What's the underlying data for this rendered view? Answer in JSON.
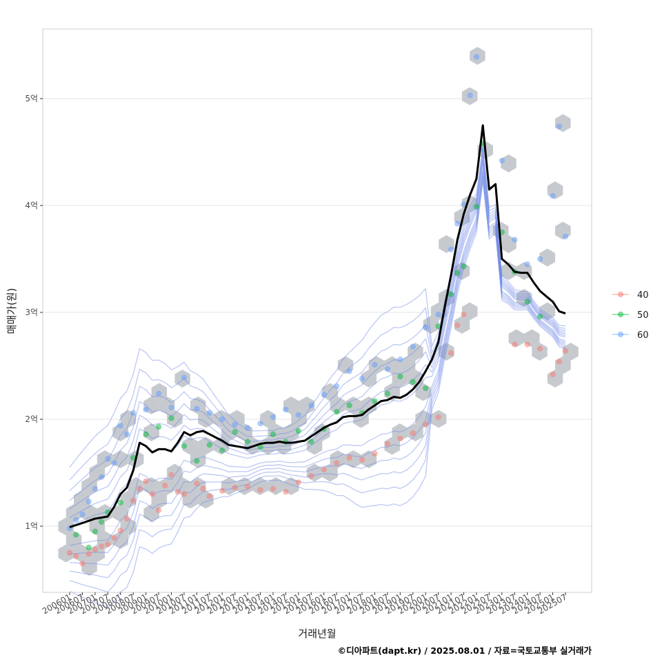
{
  "chart_data": {
    "type": "line",
    "title": "",
    "xlabel": "거래년월",
    "ylabel": "매매가(원)",
    "caption": "©디아파트(dapt.kr) / 2025.08.01 / 자료=국토교통부 실거래가",
    "x_ticks": [
      "200601",
      "200607",
      "200701",
      "200707",
      "200801",
      "200807",
      "200901",
      "200907",
      "201001",
      "201007",
      "201101",
      "201107",
      "201201",
      "201207",
      "201301",
      "201307",
      "201401",
      "201407",
      "201501",
      "201507",
      "201601",
      "201607",
      "201701",
      "201707",
      "201801",
      "201807",
      "201901",
      "201907",
      "202001",
      "202007",
      "202101",
      "202107",
      "202201",
      "202207",
      "202301",
      "202307",
      "202401",
      "202407",
      "202501",
      "202507"
    ],
    "y_ticks": [
      {
        "value": 10000,
        "label": "1억"
      },
      {
        "value": 20000,
        "label": "2억"
      },
      {
        "value": 30000,
        "label": "3억"
      },
      {
        "value": 40000,
        "label": "4억"
      },
      {
        "value": 50000,
        "label": "5억"
      }
    ],
    "y_unit": "만원",
    "ylim": [
      4500,
      57000
    ],
    "grid": true,
    "legend": {
      "placement": "right",
      "entries": [
        {
          "label": "40",
          "color": "#F8766D"
        },
        {
          "label": "50",
          "color": "#00BA38"
        },
        {
          "label": "60",
          "color": "#619CFF"
        }
      ]
    },
    "series": [
      {
        "style": "median-line",
        "color": "#000000",
        "points": [
          [
            "2006-01",
            9900
          ],
          [
            "2006-04",
            10100
          ],
          [
            "2006-07",
            10300
          ],
          [
            "2006-10",
            10500
          ],
          [
            "2007-01",
            10700
          ],
          [
            "2007-04",
            10800
          ],
          [
            "2007-07",
            10900
          ],
          [
            "2007-10",
            11800
          ],
          [
            "2008-01",
            13000
          ],
          [
            "2008-04",
            13600
          ],
          [
            "2008-07",
            15200
          ],
          [
            "2008-10",
            17800
          ],
          [
            "2009-01",
            17500
          ],
          [
            "2009-04",
            16900
          ],
          [
            "2009-07",
            17200
          ],
          [
            "2009-10",
            17200
          ],
          [
            "2010-01",
            17000
          ],
          [
            "2010-04",
            17800
          ],
          [
            "2010-07",
            18800
          ],
          [
            "2010-10",
            18500
          ],
          [
            "2011-01",
            18800
          ],
          [
            "2011-04",
            18900
          ],
          [
            "2011-07",
            18600
          ],
          [
            "2011-10",
            18300
          ],
          [
            "2012-01",
            18000
          ],
          [
            "2012-04",
            17600
          ],
          [
            "2012-07",
            17500
          ],
          [
            "2012-10",
            17400
          ],
          [
            "2013-01",
            17300
          ],
          [
            "2013-04",
            17500
          ],
          [
            "2013-07",
            17700
          ],
          [
            "2013-10",
            17800
          ],
          [
            "2014-01",
            17800
          ],
          [
            "2014-04",
            17900
          ],
          [
            "2014-07",
            17800
          ],
          [
            "2014-10",
            17800
          ],
          [
            "2015-01",
            17900
          ],
          [
            "2015-04",
            18000
          ],
          [
            "2015-07",
            18400
          ],
          [
            "2015-10",
            18800
          ],
          [
            "2016-01",
            19200
          ],
          [
            "2016-04",
            19500
          ],
          [
            "2016-07",
            19700
          ],
          [
            "2016-10",
            20200
          ],
          [
            "2017-01",
            20300
          ],
          [
            "2017-04",
            20300
          ],
          [
            "2017-07",
            20400
          ],
          [
            "2017-10",
            20900
          ],
          [
            "2018-01",
            21300
          ],
          [
            "2018-04",
            21700
          ],
          [
            "2018-07",
            21800
          ],
          [
            "2018-10",
            22100
          ],
          [
            "2019-01",
            22000
          ],
          [
            "2019-04",
            22300
          ],
          [
            "2019-07",
            22800
          ],
          [
            "2019-10",
            23500
          ],
          [
            "2020-01",
            24500
          ],
          [
            "2020-04",
            25600
          ],
          [
            "2020-07",
            27200
          ],
          [
            "2020-10",
            30500
          ],
          [
            "2021-01",
            33500
          ],
          [
            "2021-04",
            36800
          ],
          [
            "2021-07",
            39200
          ],
          [
            "2021-10",
            41000
          ],
          [
            "2022-01",
            42500
          ],
          [
            "2022-04",
            47500
          ],
          [
            "2022-07",
            41500
          ],
          [
            "2022-10",
            42000
          ],
          [
            "2023-01",
            35000
          ],
          [
            "2023-04",
            34500
          ],
          [
            "2023-07",
            33800
          ],
          [
            "2023-10",
            33700
          ],
          [
            "2024-01",
            33700
          ],
          [
            "2024-04",
            32800
          ],
          [
            "2024-07",
            32000
          ],
          [
            "2024-10",
            31500
          ],
          [
            "2025-01",
            31000
          ],
          [
            "2025-04",
            30100
          ],
          [
            "2025-07",
            29900
          ]
        ]
      }
    ],
    "scatter_note": "individual transactions colored by area group; hexbin density and 2D density contours in background",
    "scatter_points": {
      "40": [
        [
          "2006-01",
          7500
        ],
        [
          "2006-04",
          7200
        ],
        [
          "2006-07",
          6500
        ],
        [
          "2006-10",
          7400
        ],
        [
          "2007-01",
          7800
        ],
        [
          "2007-04",
          8100
        ],
        [
          "2007-07",
          8300
        ],
        [
          "2007-10",
          8900
        ],
        [
          "2008-01",
          9600
        ],
        [
          "2008-04",
          10700
        ],
        [
          "2008-07",
          12400
        ],
        [
          "2008-10",
          13500
        ],
        [
          "2009-01",
          14200
        ],
        [
          "2009-04",
          13000
        ],
        [
          "2009-07",
          11500
        ],
        [
          "2009-10",
          13800
        ],
        [
          "2010-01",
          14800
        ],
        [
          "2010-04",
          13200
        ],
        [
          "2010-07",
          13000
        ],
        [
          "2011-01",
          14000
        ],
        [
          "2011-04",
          13500
        ],
        [
          "2011-07",
          12800
        ],
        [
          "2012-01",
          13300
        ],
        [
          "2012-07",
          13600
        ],
        [
          "2013-01",
          13700
        ],
        [
          "2013-07",
          13400
        ],
        [
          "2014-01",
          13500
        ],
        [
          "2014-07",
          13200
        ],
        [
          "2015-01",
          14100
        ],
        [
          "2015-07",
          14700
        ],
        [
          "2016-01",
          15300
        ],
        [
          "2016-07",
          15900
        ],
        [
          "2017-01",
          16400
        ],
        [
          "2017-07",
          16200
        ],
        [
          "2018-01",
          16800
        ],
        [
          "2018-07",
          17700
        ],
        [
          "2019-01",
          18200
        ],
        [
          "2019-07",
          18700
        ],
        [
          "2020-01",
          19500
        ],
        [
          "2020-07",
          20200
        ],
        [
          "2021-01",
          26200
        ],
        [
          "2021-04",
          28800
        ],
        [
          "2021-07",
          29800
        ],
        [
          "2023-07",
          27000
        ],
        [
          "2024-01",
          27000
        ],
        [
          "2024-07",
          26600
        ],
        [
          "2025-01",
          24200
        ],
        [
          "2025-04",
          25400
        ],
        [
          "2025-07",
          26400
        ]
      ],
      "50": [
        [
          "2006-04",
          9200
        ],
        [
          "2006-10",
          8000
        ],
        [
          "2007-01",
          9500
        ],
        [
          "2007-04",
          10400
        ],
        [
          "2007-07",
          11300
        ],
        [
          "2008-01",
          12200
        ],
        [
          "2008-07",
          16400
        ],
        [
          "2009-01",
          18600
        ],
        [
          "2009-07",
          19300
        ],
        [
          "2010-01",
          20100
        ],
        [
          "2010-07",
          17500
        ],
        [
          "2011-01",
          16100
        ],
        [
          "2011-07",
          17600
        ],
        [
          "2012-01",
          17100
        ],
        [
          "2012-07",
          18800
        ],
        [
          "2013-01",
          17900
        ],
        [
          "2013-07",
          17400
        ],
        [
          "2014-01",
          18600
        ],
        [
          "2014-07",
          17900
        ],
        [
          "2015-01",
          18900
        ],
        [
          "2015-07",
          17900
        ],
        [
          "2016-01",
          19100
        ],
        [
          "2016-07",
          20700
        ],
        [
          "2017-01",
          21300
        ],
        [
          "2017-07",
          20600
        ],
        [
          "2018-01",
          21700
        ],
        [
          "2018-07",
          22400
        ],
        [
          "2019-01",
          24000
        ],
        [
          "2019-07",
          23500
        ],
        [
          "2020-01",
          22900
        ],
        [
          "2020-07",
          28700
        ],
        [
          "2021-01",
          31700
        ],
        [
          "2021-04",
          33700
        ],
        [
          "2021-07",
          34300
        ],
        [
          "2022-01",
          39900
        ],
        [
          "2022-04",
          45800
        ],
        [
          "2023-01",
          37500
        ],
        [
          "2023-07",
          33800
        ],
        [
          "2024-01",
          31000
        ],
        [
          "2024-07",
          29600
        ]
      ],
      "60": [
        [
          "2006-01",
          9800
        ],
        [
          "2006-04",
          10600
        ],
        [
          "2006-07",
          11100
        ],
        [
          "2006-10",
          12300
        ],
        [
          "2007-01",
          13500
        ],
        [
          "2007-04",
          14600
        ],
        [
          "2007-07",
          16300
        ],
        [
          "2007-10",
          15900
        ],
        [
          "2008-01",
          19400
        ],
        [
          "2008-04",
          18600
        ],
        [
          "2008-07",
          20600
        ],
        [
          "2009-01",
          20900
        ],
        [
          "2009-07",
          22400
        ],
        [
          "2010-01",
          21100
        ],
        [
          "2010-07",
          23900
        ],
        [
          "2011-01",
          21000
        ],
        [
          "2011-07",
          20600
        ],
        [
          "2012-01",
          20000
        ],
        [
          "2012-07",
          19500
        ],
        [
          "2013-01",
          19200
        ],
        [
          "2013-07",
          19600
        ],
        [
          "2014-01",
          20200
        ],
        [
          "2014-07",
          20900
        ],
        [
          "2015-01",
          20400
        ],
        [
          "2015-07",
          21300
        ],
        [
          "2016-01",
          22300
        ],
        [
          "2016-07",
          23100
        ],
        [
          "2017-01",
          24500
        ],
        [
          "2017-07",
          23800
        ],
        [
          "2018-01",
          25100
        ],
        [
          "2018-07",
          24700
        ],
        [
          "2019-01",
          25600
        ],
        [
          "2019-07",
          26800
        ],
        [
          "2020-01",
          28600
        ],
        [
          "2020-07",
          29800
        ],
        [
          "2021-01",
          35900
        ],
        [
          "2021-04",
          38300
        ],
        [
          "2021-07",
          40100
        ],
        [
          "2021-10",
          50300
        ],
        [
          "2022-01",
          53900
        ],
        [
          "2022-04",
          45200
        ],
        [
          "2023-01",
          44200
        ],
        [
          "2023-07",
          36800
        ],
        [
          "2024-01",
          34500
        ],
        [
          "2024-07",
          35000
        ],
        [
          "2025-01",
          40900
        ],
        [
          "2025-04",
          47400
        ],
        [
          "2025-07",
          37100
        ]
      ]
    }
  }
}
